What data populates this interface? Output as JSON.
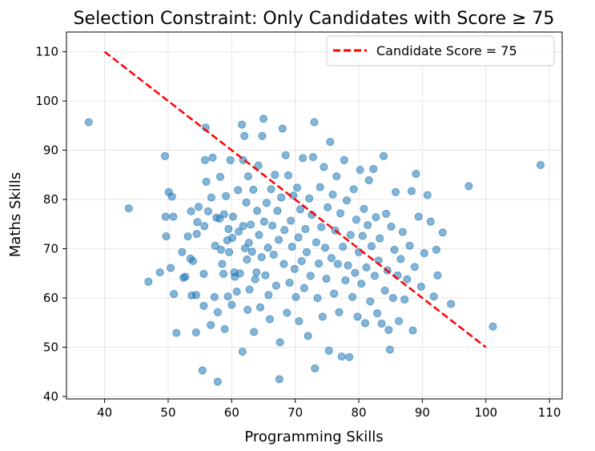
{
  "chart_data": {
    "type": "scatter",
    "title": "Selection Constraint: Only Candidates with Score ≥ 75",
    "xlabel": "Programming Skills",
    "ylabel": "Maths Skills",
    "xlim": [
      34,
      112
    ],
    "ylim": [
      39.5,
      114
    ],
    "xticks": [
      40,
      50,
      60,
      70,
      80,
      90,
      100,
      110
    ],
    "yticks": [
      40,
      50,
      60,
      70,
      80,
      90,
      100,
      110
    ],
    "grid": true,
    "legend_position": "top-right",
    "colors": {
      "points": "#1f77b4",
      "line": "#ff0000",
      "grid": "#e6e6e6"
    },
    "line": {
      "name": "Candidate Score = 75",
      "x": [
        40,
        100
      ],
      "y": [
        110,
        50
      ],
      "style": "dashed"
    },
    "series": [
      {
        "marker": "circle",
        "points": [
          [
            37.5,
            95.7
          ],
          [
            43.8,
            78.2
          ],
          [
            46.9,
            63.3
          ],
          [
            48.7,
            65.2
          ],
          [
            49.5,
            88.8
          ],
          [
            49.6,
            76.5
          ],
          [
            49.7,
            72.5
          ],
          [
            50.1,
            81.5
          ],
          [
            50.4,
            66.1
          ],
          [
            50.6,
            80.6
          ],
          [
            50.8,
            76.5
          ],
          [
            50.9,
            60.8
          ],
          [
            51.3,
            52.9
          ],
          [
            52.2,
            69.3
          ],
          [
            52.4,
            64.1
          ],
          [
            52.7,
            64.3
          ],
          [
            53.1,
            72.5
          ],
          [
            53.5,
            68.0
          ],
          [
            53.6,
            77.6
          ],
          [
            53.7,
            60.5
          ],
          [
            53.9,
            67.5
          ],
          [
            54.4,
            53.0
          ],
          [
            54.4,
            60.6
          ],
          [
            54.5,
            73.0
          ],
          [
            54.6,
            75.4
          ],
          [
            54.8,
            78.5
          ],
          [
            55.4,
            45.3
          ],
          [
            55.6,
            64.9
          ],
          [
            55.6,
            58.4
          ],
          [
            55.7,
            74.6
          ],
          [
            55.8,
            88.0
          ],
          [
            55.9,
            94.6
          ],
          [
            56.0,
            83.6
          ],
          [
            56.3,
            77.6
          ],
          [
            56.7,
            54.5
          ],
          [
            56.8,
            80.4
          ],
          [
            57.0,
            88.5
          ],
          [
            57.3,
            60.2
          ],
          [
            57.4,
            70.6
          ],
          [
            57.6,
            76.3
          ],
          [
            57.8,
            43.0
          ],
          [
            57.8,
            57.1
          ],
          [
            58.1,
            76.1
          ],
          [
            58.2,
            84.6
          ],
          [
            58.3,
            69.8
          ],
          [
            58.5,
            66.9
          ],
          [
            58.7,
            64.9
          ],
          [
            58.8,
            77.0
          ],
          [
            58.9,
            53.7
          ],
          [
            59.1,
            80.7
          ],
          [
            59.3,
            71.7
          ],
          [
            59.4,
            60.3
          ],
          [
            59.5,
            74.0
          ],
          [
            59.6,
            69.3
          ],
          [
            59.8,
            88.0
          ],
          [
            60.0,
            58.6
          ],
          [
            60.1,
            72.2
          ],
          [
            60.2,
            76.5
          ],
          [
            60.4,
            65.2
          ],
          [
            60.5,
            64.3
          ],
          [
            60.8,
            61.3
          ],
          [
            61.0,
            81.9
          ],
          [
            61.1,
            73.5
          ],
          [
            61.3,
            65.0
          ],
          [
            61.6,
            95.2
          ],
          [
            61.7,
            49.1
          ],
          [
            61.8,
            74.6
          ],
          [
            61.8,
            88.0
          ],
          [
            62.0,
            92.9
          ],
          [
            62.1,
            70.1
          ],
          [
            62.3,
            79.4
          ],
          [
            62.4,
            67.8
          ],
          [
            62.5,
            57.6
          ],
          [
            62.6,
            84.7
          ],
          [
            62.7,
            71.2
          ],
          [
            62.8,
            61.7
          ],
          [
            63.0,
            74.9
          ],
          [
            63.2,
            69.4
          ],
          [
            63.4,
            82.0
          ],
          [
            63.5,
            53.1
          ],
          [
            63.7,
            63.8
          ],
          [
            63.9,
            65.2
          ],
          [
            64.0,
            77.7
          ],
          [
            64.2,
            86.9
          ],
          [
            64.3,
            72.8
          ],
          [
            64.5,
            58.1
          ],
          [
            64.7,
            68.3
          ],
          [
            64.8,
            92.9
          ],
          [
            65.0,
            96.4
          ],
          [
            65.1,
            75.5
          ],
          [
            65.3,
            64.6
          ],
          [
            65.5,
            79.3
          ],
          [
            65.7,
            70.2
          ],
          [
            65.8,
            60.6
          ],
          [
            66.0,
            55.7
          ],
          [
            66.2,
            82.1
          ],
          [
            66.4,
            74.7
          ],
          [
            66.6,
            68.8
          ],
          [
            66.8,
            85.0
          ],
          [
            67.0,
            62.5
          ],
          [
            67.2,
            77.7
          ],
          [
            67.4,
            71.8
          ],
          [
            67.5,
            43.5
          ],
          [
            67.6,
            51.0
          ],
          [
            67.8,
            80.4
          ],
          [
            68.0,
            94.4
          ],
          [
            68.2,
            66.9
          ],
          [
            68.3,
            73.8
          ],
          [
            68.5,
            89.0
          ],
          [
            68.7,
            57.0
          ],
          [
            68.9,
            84.9
          ],
          [
            69.1,
            63.1
          ],
          [
            69.3,
            75.7
          ],
          [
            69.5,
            70.4
          ],
          [
            69.7,
            80.8
          ],
          [
            69.9,
            65.9
          ],
          [
            70.1,
            60.2
          ],
          [
            70.3,
            82.4
          ],
          [
            70.5,
            72.3
          ],
          [
            70.6,
            55.3
          ],
          [
            70.8,
            78.0
          ],
          [
            71.0,
            67.5
          ],
          [
            71.2,
            88.4
          ],
          [
            71.4,
            62.0
          ],
          [
            71.6,
            74.0
          ],
          [
            71.8,
            69.3
          ],
          [
            72.0,
            52.3
          ],
          [
            72.2,
            80.2
          ],
          [
            72.4,
            64.5
          ],
          [
            72.6,
            76.9
          ],
          [
            72.8,
            88.6
          ],
          [
            73.0,
            95.7
          ],
          [
            73.1,
            45.7
          ],
          [
            73.3,
            71.3
          ],
          [
            73.5,
            60.0
          ],
          [
            73.7,
            67.0
          ],
          [
            73.9,
            82.5
          ],
          [
            74.1,
            74.4
          ],
          [
            74.3,
            56.2
          ],
          [
            74.5,
            86.6
          ],
          [
            74.7,
            70.2
          ],
          [
            74.9,
            63.9
          ],
          [
            75.1,
            78.4
          ],
          [
            75.3,
            49.3
          ],
          [
            75.5,
            91.7
          ],
          [
            75.7,
            68.1
          ],
          [
            75.9,
            81.0
          ],
          [
            76.1,
            60.9
          ],
          [
            76.3,
            73.7
          ],
          [
            76.5,
            84.7
          ],
          [
            76.7,
            66.9
          ],
          [
            76.9,
            57.1
          ],
          [
            77.1,
            77.2
          ],
          [
            77.3,
            48.1
          ],
          [
            77.5,
            70.4
          ],
          [
            77.7,
            88.0
          ],
          [
            77.9,
            63.6
          ],
          [
            78.1,
            79.8
          ],
          [
            78.3,
            66.6
          ],
          [
            78.5,
            48.0
          ],
          [
            78.7,
            72.8
          ],
          [
            79.0,
            60.2
          ],
          [
            79.2,
            82.1
          ],
          [
            79.4,
            65.1
          ],
          [
            79.6,
            75.9
          ],
          [
            79.8,
            56.2
          ],
          [
            80.0,
            69.3
          ],
          [
            80.2,
            86.0
          ],
          [
            80.4,
            62.9
          ],
          [
            80.6,
            72.6
          ],
          [
            80.8,
            78.1
          ],
          [
            81.0,
            54.9
          ],
          [
            81.2,
            66.2
          ],
          [
            81.4,
            74.8
          ],
          [
            81.6,
            83.9
          ],
          [
            81.8,
            59.3
          ],
          [
            82.0,
            70.5
          ],
          [
            82.3,
            86.2
          ],
          [
            82.5,
            64.5
          ],
          [
            82.7,
            76.4
          ],
          [
            82.9,
            56.9
          ],
          [
            83.1,
            67.6
          ],
          [
            83.3,
            72.1
          ],
          [
            83.6,
            54.8
          ],
          [
            83.9,
            88.8
          ],
          [
            84.1,
            61.5
          ],
          [
            84.3,
            77.1
          ],
          [
            84.5,
            65.6
          ],
          [
            84.7,
            53.5
          ],
          [
            84.9,
            49.5
          ],
          [
            85.1,
            74.5
          ],
          [
            85.4,
            60.0
          ],
          [
            85.6,
            69.8
          ],
          [
            85.8,
            81.5
          ],
          [
            86.1,
            64.6
          ],
          [
            86.3,
            55.3
          ],
          [
            86.6,
            67.9
          ],
          [
            86.9,
            73.4
          ],
          [
            87.2,
            59.7
          ],
          [
            87.6,
            63.8
          ],
          [
            88.0,
            70.6
          ],
          [
            88.3,
            81.7
          ],
          [
            88.5,
            53.4
          ],
          [
            88.8,
            66.3
          ],
          [
            89.0,
            85.2
          ],
          [
            89.4,
            76.5
          ],
          [
            89.8,
            62.3
          ],
          [
            90.3,
            69.1
          ],
          [
            90.8,
            80.9
          ],
          [
            91.3,
            75.5
          ],
          [
            91.8,
            60.3
          ],
          [
            92.2,
            69.8
          ],
          [
            92.4,
            64.6
          ],
          [
            93.2,
            73.3
          ],
          [
            94.5,
            58.8
          ],
          [
            97.3,
            82.7
          ],
          [
            101.1,
            54.2
          ],
          [
            108.6,
            87.0
          ]
        ]
      }
    ]
  }
}
